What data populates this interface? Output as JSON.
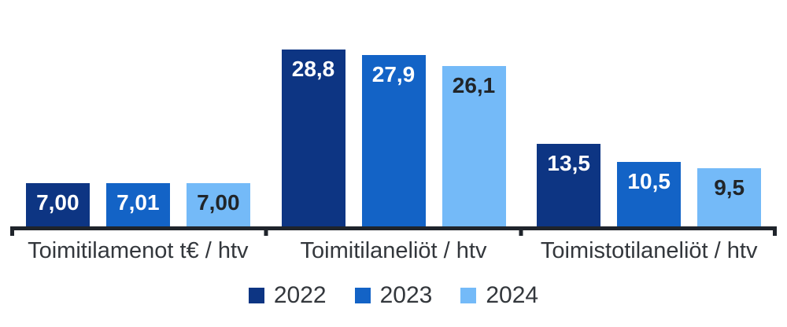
{
  "chart_data": {
    "type": "bar",
    "title": "",
    "categories": [
      "Toimitilamenot t€ / htv",
      "Toimitilaneliöt / htv",
      "Toimistotilaneliöt / htv"
    ],
    "series": [
      {
        "name": "2022",
        "color": "#0D3583",
        "label_color": "#FFFFFF",
        "values": [
          7.0,
          28.8,
          13.5
        ],
        "labels": [
          "7,00",
          "28,8",
          "13,5"
        ]
      },
      {
        "name": "2023",
        "color": "#1363C6",
        "label_color": "#FFFFFF",
        "values": [
          7.01,
          27.9,
          10.5
        ],
        "labels": [
          "7,01",
          "27,9",
          "10,5"
        ]
      },
      {
        "name": "2024",
        "color": "#74BAF8",
        "label_color": "#212529",
        "values": [
          7.0,
          26.1,
          9.5
        ],
        "labels": [
          "7,00",
          "26,1",
          "9,5"
        ]
      }
    ],
    "legend": {
      "position": "bottom",
      "entries": [
        "2022",
        "2023",
        "2024"
      ]
    },
    "ylim": [
      0,
      30
    ],
    "grid": false,
    "value_label_position": "inside-top",
    "axis_color": "#1F242B",
    "text_color": "#33373C"
  }
}
